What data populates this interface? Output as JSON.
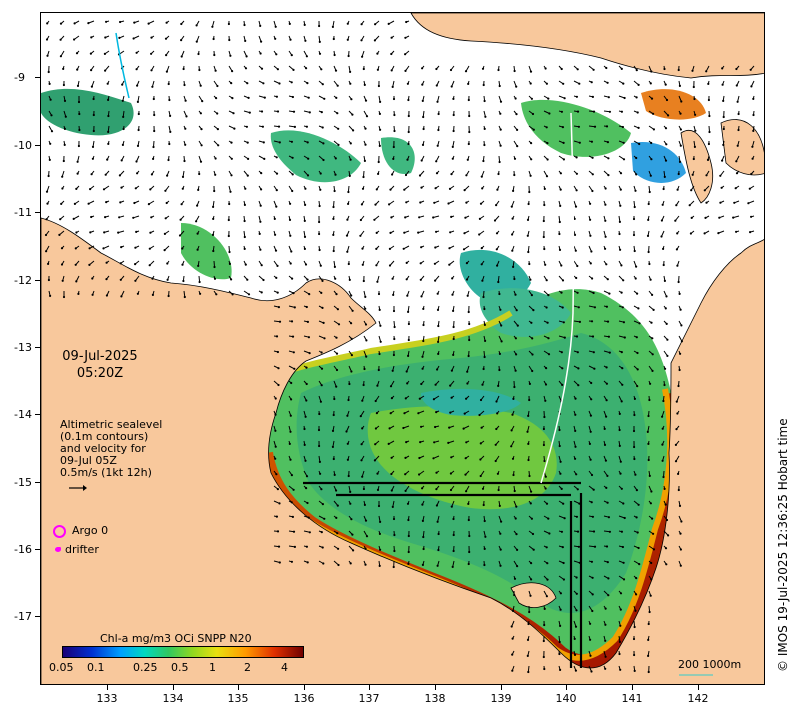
{
  "timestamp": {
    "date": "09-Jul-2025",
    "time": "05:20Z"
  },
  "legend": {
    "line1": "Altimetric sealevel",
    "line2": "(0.1m contours)",
    "line3": "and velocity for",
    "line4": "09-Jul 05Z",
    "line5": "0.5m/s (1kt 12h)"
  },
  "markers": {
    "argo": "Argo 0",
    "drifter": "drifter"
  },
  "colorbar": {
    "title": "Chl-a mg/m3 OCi SNPP N20",
    "labels": [
      "0.05",
      "0.1",
      "0.25",
      "0.5",
      "1",
      "2",
      "4"
    ]
  },
  "scale": {
    "label": "200  1000m"
  },
  "axes": {
    "lat_labels": [
      "-9",
      "-10",
      "-11",
      "-12",
      "-13",
      "-14",
      "-15",
      "-16",
      "-17"
    ],
    "lon_labels": [
      "133",
      "134",
      "135",
      "136",
      "137",
      "138",
      "139",
      "140",
      "141",
      "142"
    ]
  },
  "credit": "© IMOS 19-Jul-2025 12:36:25 Hobart time",
  "colors": {
    "land": "#f8c89c",
    "ocean_nodata": "#ffffff",
    "argo": "#ff00ff",
    "drifter": "#ff00ff"
  }
}
